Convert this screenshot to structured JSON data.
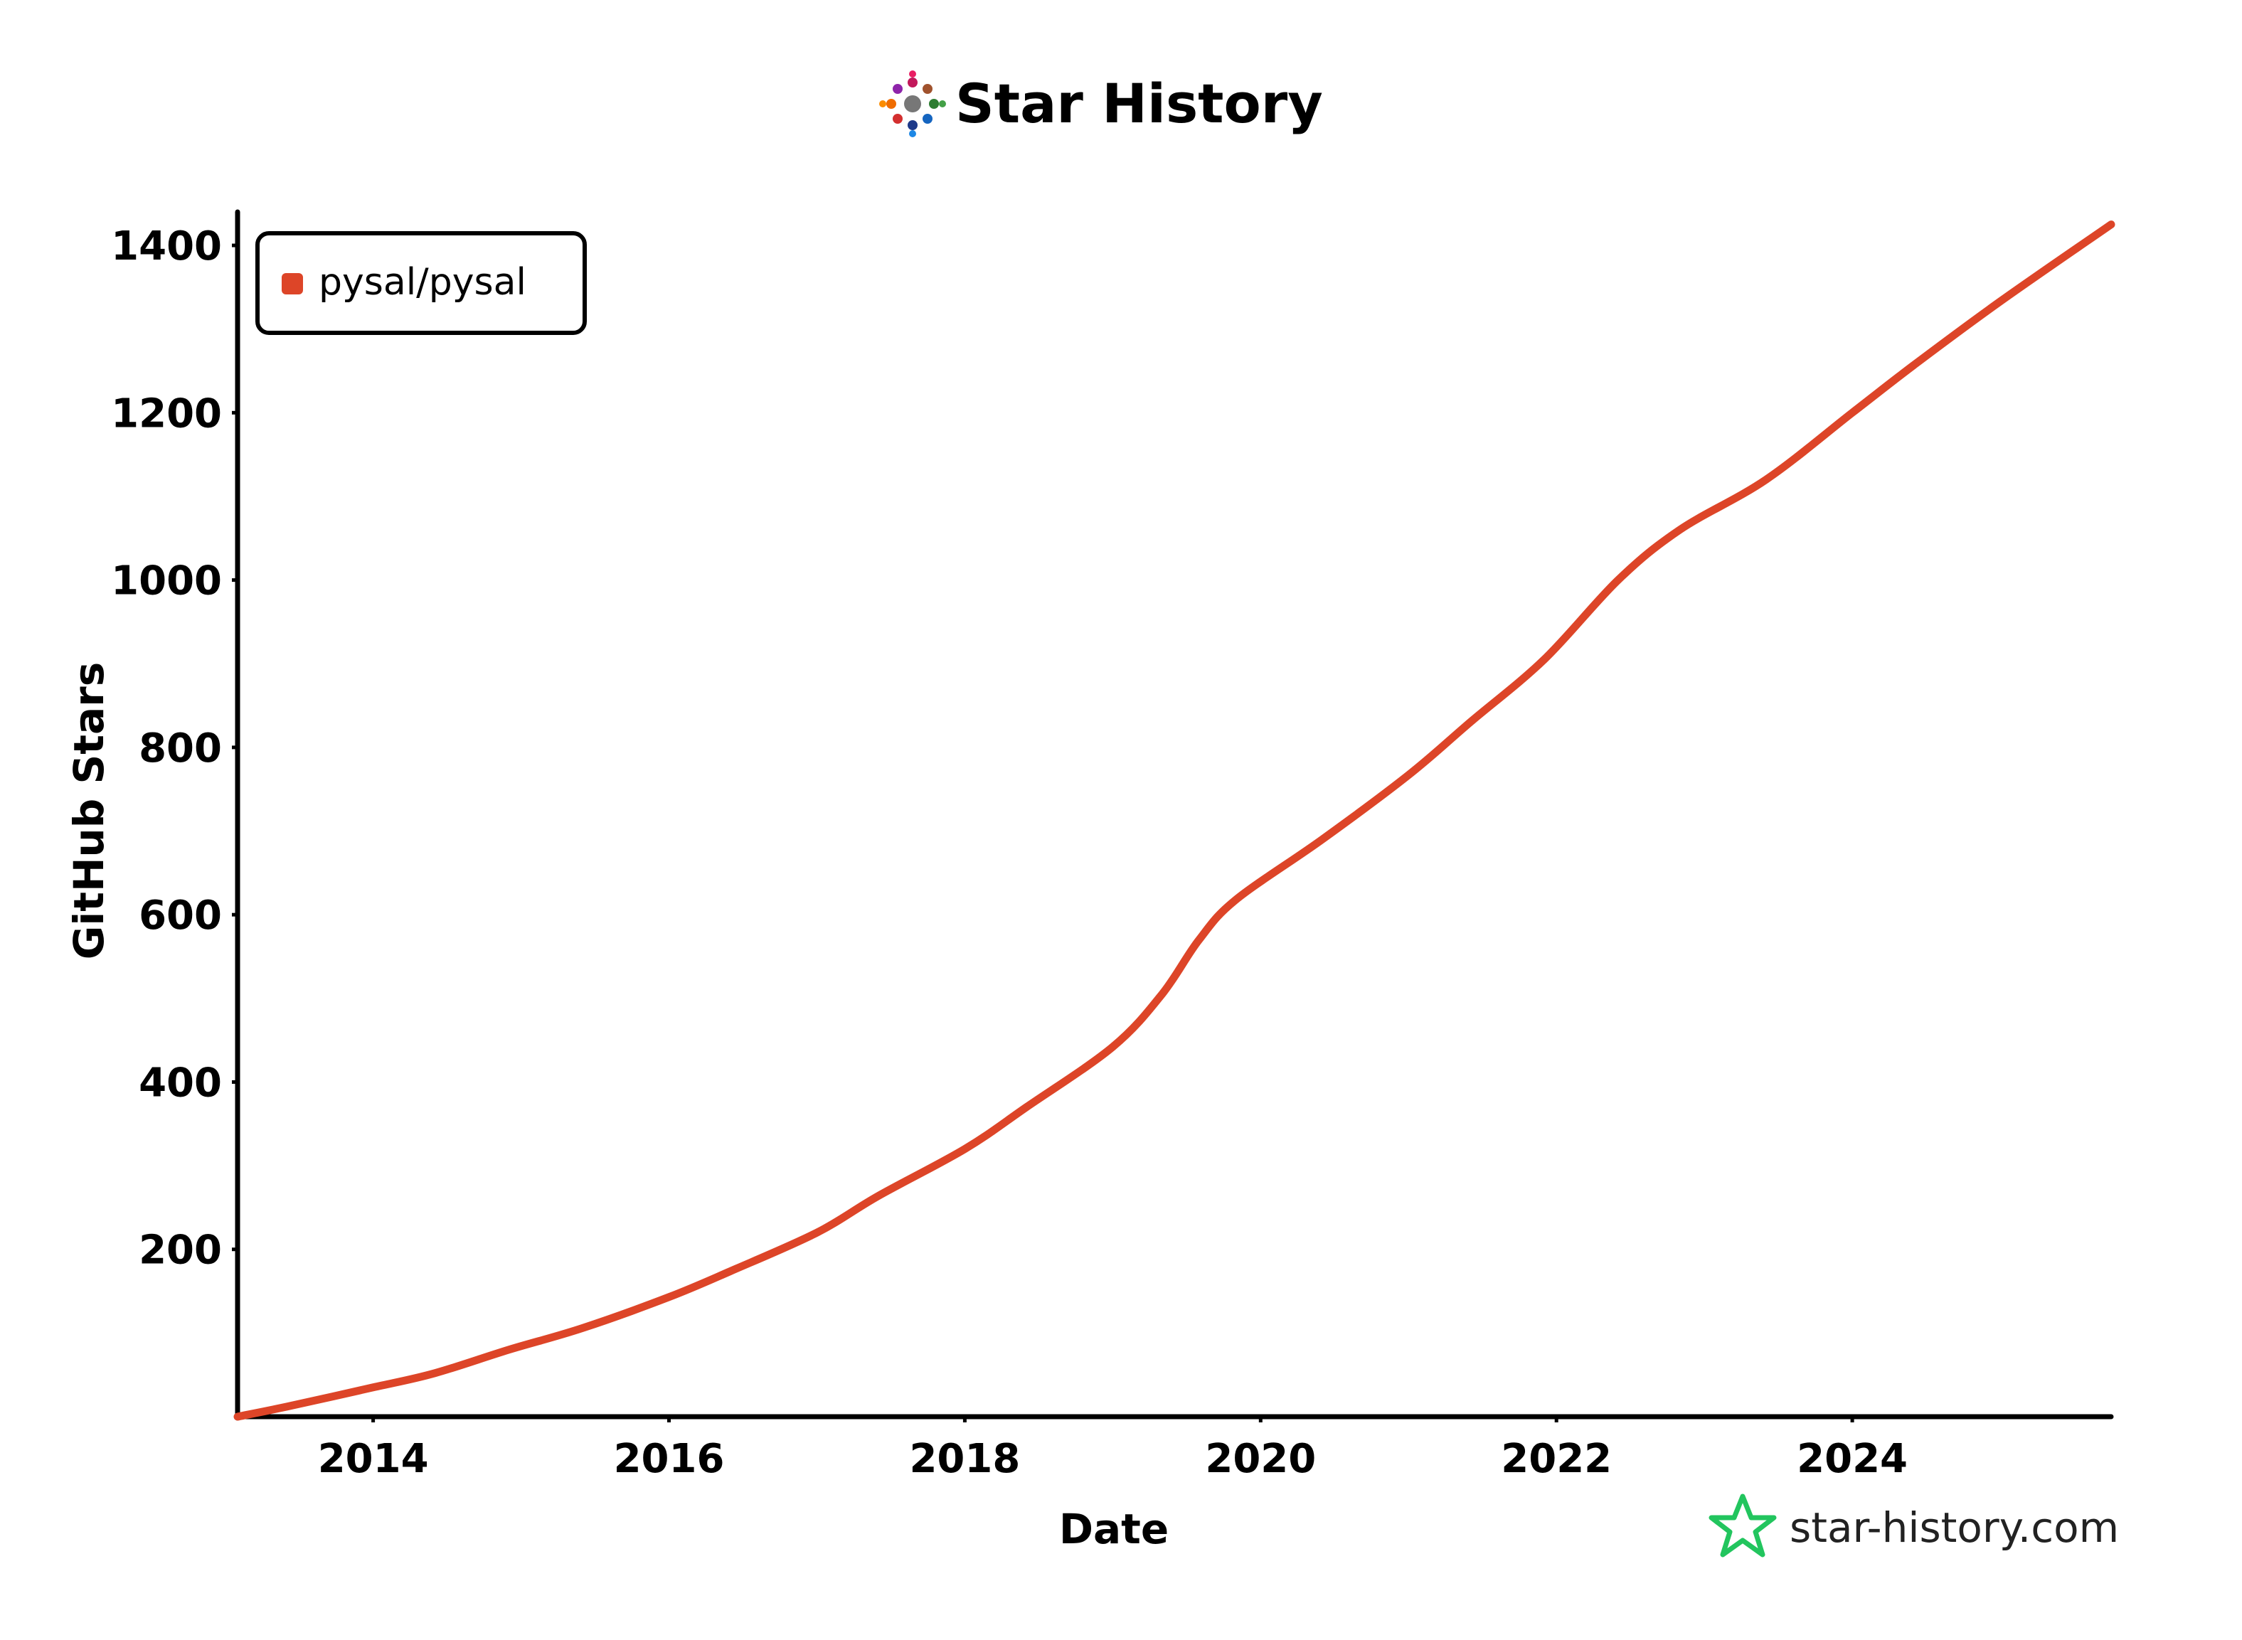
{
  "header": {
    "title": "Star History",
    "logo_icon": "star-history-logo-icon"
  },
  "watermark": {
    "text": "star-history.com",
    "icon": "green-star-icon",
    "icon_color": "#22c55e"
  },
  "colors": {
    "series": "#dd4528",
    "axis": "#000000",
    "background": "#ffffff"
  },
  "chart_data": {
    "type": "line",
    "title": "Star History",
    "xlabel": "Date",
    "ylabel": "GitHub Stars",
    "x_ticks": [
      "2014",
      "2016",
      "2018",
      "2020",
      "2022",
      "2024"
    ],
    "y_ticks": [
      "200",
      "400",
      "600",
      "800",
      "1000",
      "1200",
      "1400"
    ],
    "xlim": [
      "2013-02-01",
      "2025-10-01"
    ],
    "ylim": [
      0,
      1440
    ],
    "grid": false,
    "legend_position": "top-left",
    "series": [
      {
        "name": "pysal/pysal",
        "color": "#dd4528",
        "points": [
          [
            "2013-02-01",
            0
          ],
          [
            "2013-06-01",
            12
          ],
          [
            "2014-01-01",
            35
          ],
          [
            "2014-06-01",
            52
          ],
          [
            "2014-12-01",
            80
          ],
          [
            "2015-06-01",
            106
          ],
          [
            "2016-01-01",
            143
          ],
          [
            "2016-06-01",
            174
          ],
          [
            "2017-01-01",
            220
          ],
          [
            "2017-06-01",
            264
          ],
          [
            "2018-01-01",
            320
          ],
          [
            "2018-06-01",
            370
          ],
          [
            "2019-01-01",
            442
          ],
          [
            "2019-05-01",
            505
          ],
          [
            "2019-08-01",
            570
          ],
          [
            "2019-11-01",
            618
          ],
          [
            "2020-06-01",
            690
          ],
          [
            "2021-01-01",
            767
          ],
          [
            "2021-06-01",
            830
          ],
          [
            "2021-12-01",
            905
          ],
          [
            "2022-06-01",
            1000
          ],
          [
            "2022-11-01",
            1060
          ],
          [
            "2023-06-01",
            1120
          ],
          [
            "2024-01-01",
            1200
          ],
          [
            "2024-06-01",
            1257
          ],
          [
            "2025-01-01",
            1333
          ],
          [
            "2025-10-01",
            1425
          ]
        ]
      }
    ]
  }
}
